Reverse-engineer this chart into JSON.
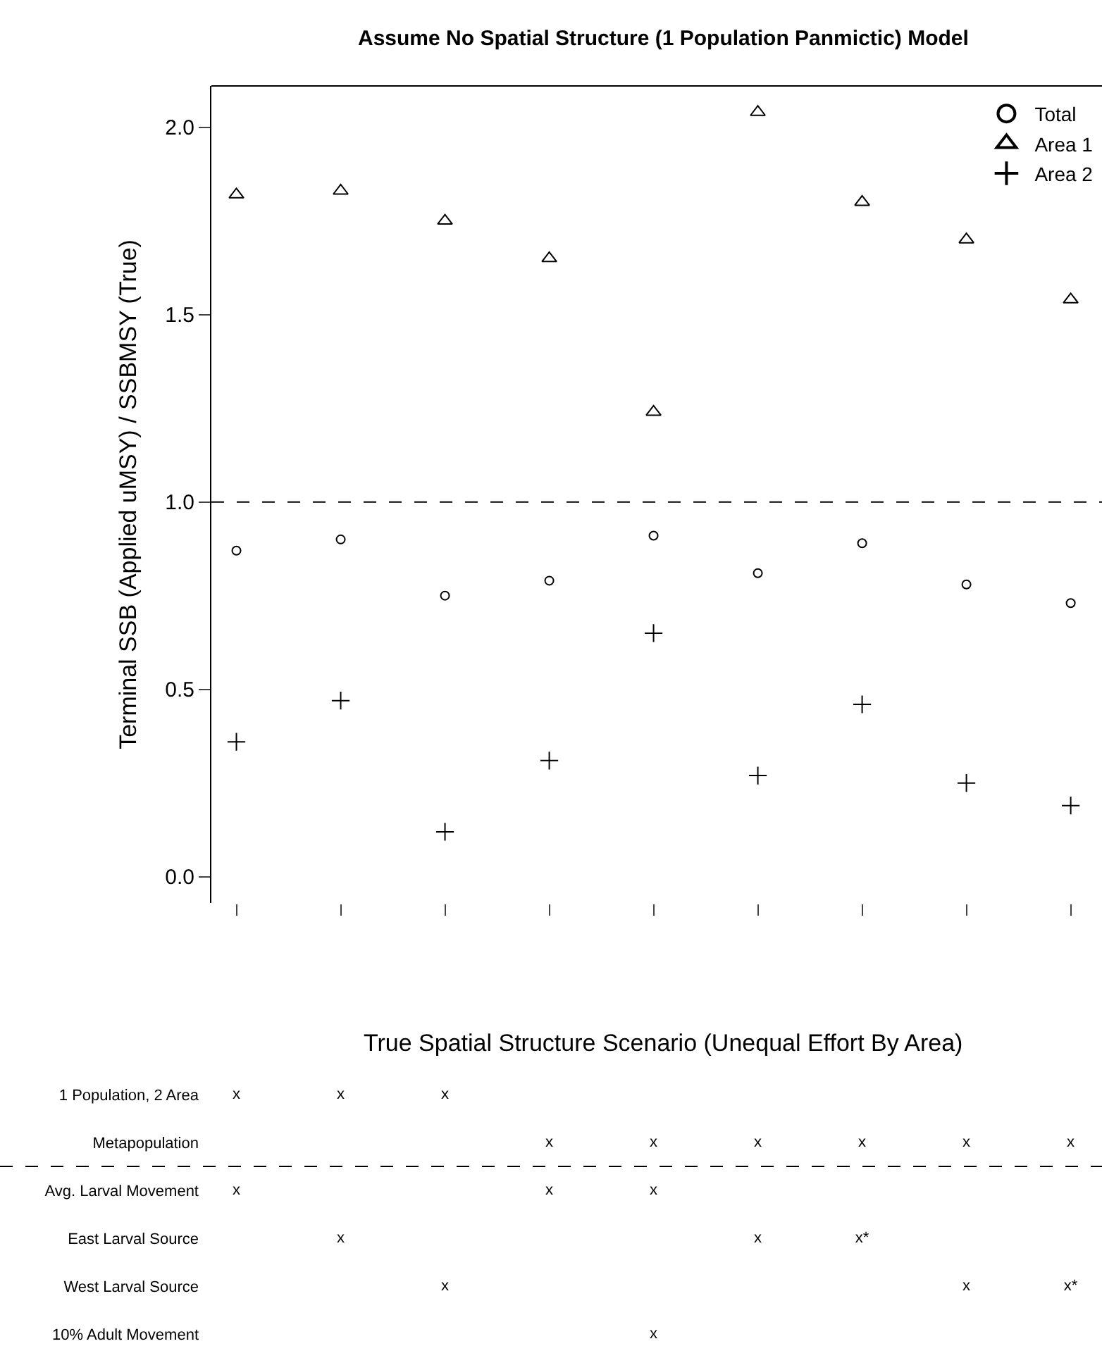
{
  "chart_data": [
    {
      "type": "scatter",
      "title": "Assume No Spatial Structure (1 Population Panmictic) Model",
      "ylabel": "Terminal SSB (Applied uMSY) / SSBMSY (True)",
      "categories": [
        null,
        null,
        null,
        null,
        null,
        null,
        null,
        null,
        null
      ],
      "series": [
        {
          "name": "Total",
          "color": "#000000",
          "marker": "circle",
          "values": [
            0.87,
            0.9,
            0.75,
            0.79,
            0.91,
            0.81,
            0.89,
            0.78,
            0.73
          ]
        },
        {
          "name": "Area 1",
          "color": "#000000",
          "marker": "triangle",
          "values": [
            1.82,
            1.83,
            1.75,
            1.65,
            1.24,
            2.04,
            1.8,
            1.7,
            1.54
          ]
        },
        {
          "name": "Area 2",
          "color": "#000000",
          "marker": "cross",
          "values": [
            0.36,
            0.47,
            0.12,
            0.31,
            0.65,
            0.27,
            0.46,
            0.25,
            0.19
          ]
        }
      ],
      "ylim": [
        -0.07,
        2.11
      ],
      "yticks": [
        {
          "value": 0,
          "label": "0.0"
        },
        0.5,
        {
          "value": 1,
          "label": "1.0"
        },
        1.5,
        {
          "value": 2,
          "label": "2.0"
        }
      ],
      "ref_lines": [
        {
          "axis": "y",
          "value": 1,
          "line_style": "dashed",
          "color": "#000000"
        }
      ],
      "legend": "top right"
    },
    {
      "type": "other",
      "title": "True Spatial Structure Scenario (Unequal Effort By Area)",
      "categories": [
        null,
        null,
        null,
        null,
        null,
        null,
        null,
        null,
        null
      ],
      "y_categories": [
        "1 Population, 2 Area",
        "Metapopulation",
        "Avg. Larval Movement",
        "East Larval Source",
        "West Larval Source",
        "10% Adult Movement"
      ],
      "cell_labels": [
        [
          "x",
          "x",
          "x",
          null,
          null,
          null,
          null,
          null,
          null
        ],
        [
          null,
          null,
          null,
          "x",
          "x",
          "x",
          "x",
          "x",
          "x"
        ],
        [
          "x",
          null,
          null,
          "x",
          "x",
          null,
          null,
          null,
          null
        ],
        [
          null,
          "x",
          null,
          null,
          null,
          "x",
          "x*",
          null,
          null
        ],
        [
          null,
          null,
          "x",
          null,
          null,
          null,
          null,
          "x",
          "x*"
        ],
        [
          null,
          null,
          null,
          null,
          "x",
          null,
          null,
          null,
          null
        ]
      ]
    }
  ]
}
